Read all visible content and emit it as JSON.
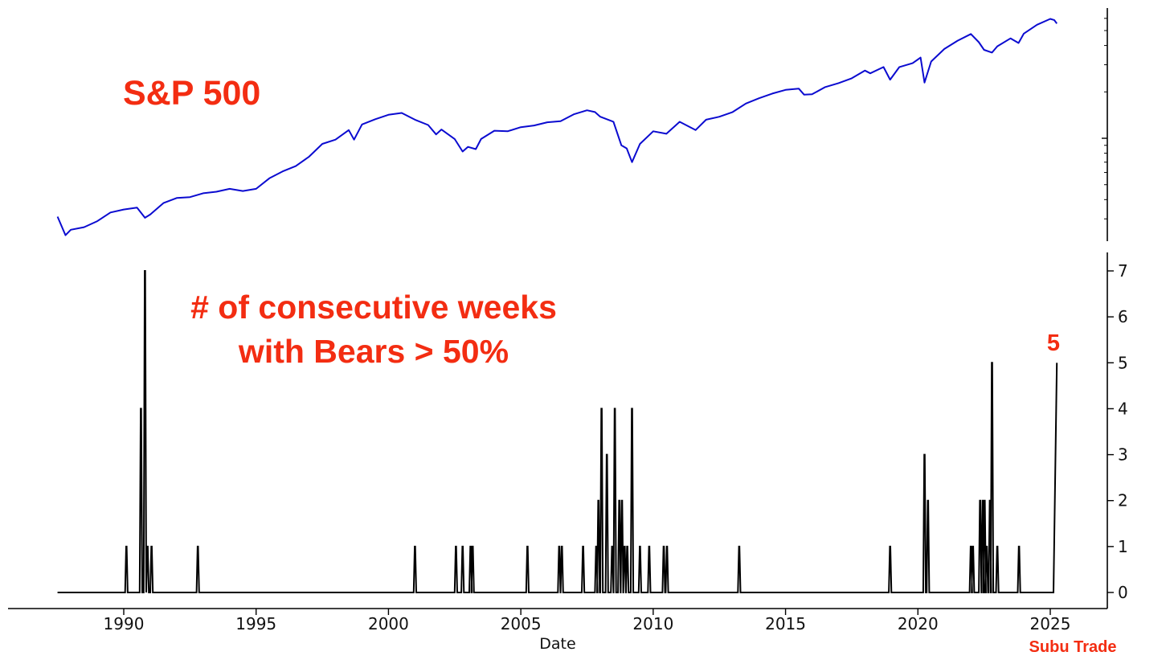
{
  "annotations": {
    "top_title": "S&P 500",
    "bottom_title_line1": "# of consecutive weeks",
    "bottom_title_line2": "with Bears > 50%",
    "last_value_label": "5",
    "watermark": "Subu Trade"
  },
  "colors": {
    "annotation": "#f32d12",
    "sp500_line": "#0b0bd0",
    "count_line": "#000000",
    "axis": "#000000"
  },
  "chart_data": [
    {
      "type": "line",
      "title": "S&P 500",
      "yscale": "log",
      "y_tick_labels_visible": false,
      "xlim": [
        1986.8,
        2026.8
      ],
      "ylim": [
        215,
        7000
      ],
      "series": [
        {
          "name": "S&P 500",
          "points": [
            [
              1987.5,
              310
            ],
            [
              1987.8,
              235
            ],
            [
              1988.0,
              255
            ],
            [
              1988.5,
              265
            ],
            [
              1989.0,
              290
            ],
            [
              1989.5,
              330
            ],
            [
              1990.0,
              345
            ],
            [
              1990.5,
              355
            ],
            [
              1990.8,
              305
            ],
            [
              1991.0,
              320
            ],
            [
              1991.5,
              380
            ],
            [
              1992.0,
              410
            ],
            [
              1992.5,
              415
            ],
            [
              1993.0,
              440
            ],
            [
              1993.5,
              450
            ],
            [
              1994.0,
              470
            ],
            [
              1994.5,
              455
            ],
            [
              1995.0,
              470
            ],
            [
              1995.5,
              550
            ],
            [
              1996.0,
              610
            ],
            [
              1996.5,
              660
            ],
            [
              1997.0,
              760
            ],
            [
              1997.5,
              920
            ],
            [
              1998.0,
              980
            ],
            [
              1998.5,
              1130
            ],
            [
              1998.7,
              980
            ],
            [
              1999.0,
              1230
            ],
            [
              1999.5,
              1330
            ],
            [
              2000.0,
              1420
            ],
            [
              2000.5,
              1460
            ],
            [
              2001.0,
              1320
            ],
            [
              2001.5,
              1220
            ],
            [
              2001.8,
              1060
            ],
            [
              2002.0,
              1140
            ],
            [
              2002.5,
              990
            ],
            [
              2002.8,
              820
            ],
            [
              2003.0,
              880
            ],
            [
              2003.3,
              850
            ],
            [
              2003.5,
              990
            ],
            [
              2004.0,
              1120
            ],
            [
              2004.5,
              1110
            ],
            [
              2005.0,
              1180
            ],
            [
              2005.5,
              1210
            ],
            [
              2006.0,
              1270
            ],
            [
              2006.5,
              1290
            ],
            [
              2007.0,
              1430
            ],
            [
              2007.5,
              1520
            ],
            [
              2007.8,
              1480
            ],
            [
              2008.0,
              1380
            ],
            [
              2008.5,
              1280
            ],
            [
              2008.8,
              900
            ],
            [
              2009.0,
              860
            ],
            [
              2009.2,
              700
            ],
            [
              2009.5,
              920
            ],
            [
              2010.0,
              1110
            ],
            [
              2010.5,
              1070
            ],
            [
              2011.0,
              1280
            ],
            [
              2011.6,
              1130
            ],
            [
              2012.0,
              1320
            ],
            [
              2012.5,
              1380
            ],
            [
              2013.0,
              1480
            ],
            [
              2013.5,
              1680
            ],
            [
              2014.0,
              1820
            ],
            [
              2014.5,
              1950
            ],
            [
              2015.0,
              2060
            ],
            [
              2015.5,
              2100
            ],
            [
              2015.7,
              1920
            ],
            [
              2016.0,
              1930
            ],
            [
              2016.5,
              2150
            ],
            [
              2017.0,
              2280
            ],
            [
              2017.5,
              2450
            ],
            [
              2018.0,
              2750
            ],
            [
              2018.2,
              2640
            ],
            [
              2018.7,
              2900
            ],
            [
              2018.95,
              2400
            ],
            [
              2019.3,
              2900
            ],
            [
              2019.8,
              3070
            ],
            [
              2020.1,
              3340
            ],
            [
              2020.25,
              2300
            ],
            [
              2020.5,
              3150
            ],
            [
              2021.0,
              3800
            ],
            [
              2021.5,
              4300
            ],
            [
              2022.0,
              4750
            ],
            [
              2022.3,
              4200
            ],
            [
              2022.5,
              3750
            ],
            [
              2022.8,
              3600
            ],
            [
              2023.0,
              3950
            ],
            [
              2023.5,
              4450
            ],
            [
              2023.8,
              4150
            ],
            [
              2024.0,
              4780
            ],
            [
              2024.5,
              5450
            ],
            [
              2025.0,
              5950
            ],
            [
              2025.15,
              5850
            ],
            [
              2025.25,
              5550
            ]
          ]
        }
      ]
    },
    {
      "type": "line",
      "xlabel": "Date",
      "xlim": [
        1986.8,
        2026.8
      ],
      "ylim": [
        -0.35,
        7.35
      ],
      "x_ticks": [
        1990,
        1995,
        2000,
        2005,
        2010,
        2015,
        2020,
        2025
      ],
      "x_tick_labels": [
        "1990",
        "1995",
        "2000",
        "2005",
        "2010",
        "2015",
        "2020",
        "2025"
      ],
      "y_ticks": [
        0,
        1,
        2,
        3,
        4,
        5,
        6,
        7
      ],
      "y_tick_labels": [
        "0",
        "1",
        "2",
        "3",
        "4",
        "5",
        "6",
        "7"
      ],
      "series": [
        {
          "name": "# of consecutive weeks with Bears > 50%",
          "baseline_start": 1987.5,
          "baseline_end": 2025.12,
          "spikes": [
            [
              1990.1,
              1
            ],
            [
              1990.65,
              4
            ],
            [
              1990.8,
              7
            ],
            [
              1990.9,
              1
            ],
            [
              1991.05,
              1
            ],
            [
              1992.8,
              1
            ],
            [
              2001.0,
              1
            ],
            [
              2002.55,
              1
            ],
            [
              2002.8,
              1
            ],
            [
              2003.1,
              1
            ],
            [
              2003.18,
              1
            ],
            [
              2005.25,
              1
            ],
            [
              2006.45,
              1
            ],
            [
              2006.55,
              1
            ],
            [
              2007.35,
              1
            ],
            [
              2007.85,
              1
            ],
            [
              2007.93,
              2
            ],
            [
              2008.05,
              4
            ],
            [
              2008.25,
              3
            ],
            [
              2008.45,
              1
            ],
            [
              2008.55,
              4
            ],
            [
              2008.72,
              2
            ],
            [
              2008.82,
              2
            ],
            [
              2008.92,
              1
            ],
            [
              2009.02,
              1
            ],
            [
              2009.2,
              4
            ],
            [
              2009.5,
              1
            ],
            [
              2009.85,
              1
            ],
            [
              2010.4,
              1
            ],
            [
              2010.52,
              1
            ],
            [
              2013.25,
              1
            ],
            [
              2018.95,
              1
            ],
            [
              2020.25,
              3
            ],
            [
              2020.38,
              2
            ],
            [
              2022.0,
              1
            ],
            [
              2022.08,
              1
            ],
            [
              2022.35,
              2
            ],
            [
              2022.45,
              2
            ],
            [
              2022.52,
              2
            ],
            [
              2022.6,
              1
            ],
            [
              2022.72,
              2
            ],
            [
              2022.8,
              5
            ],
            [
              2023.0,
              1
            ],
            [
              2023.82,
              1
            ]
          ],
          "end_ramp": [
            [
              2025.12,
              0
            ],
            [
              2025.25,
              5
            ]
          ]
        }
      ]
    }
  ]
}
